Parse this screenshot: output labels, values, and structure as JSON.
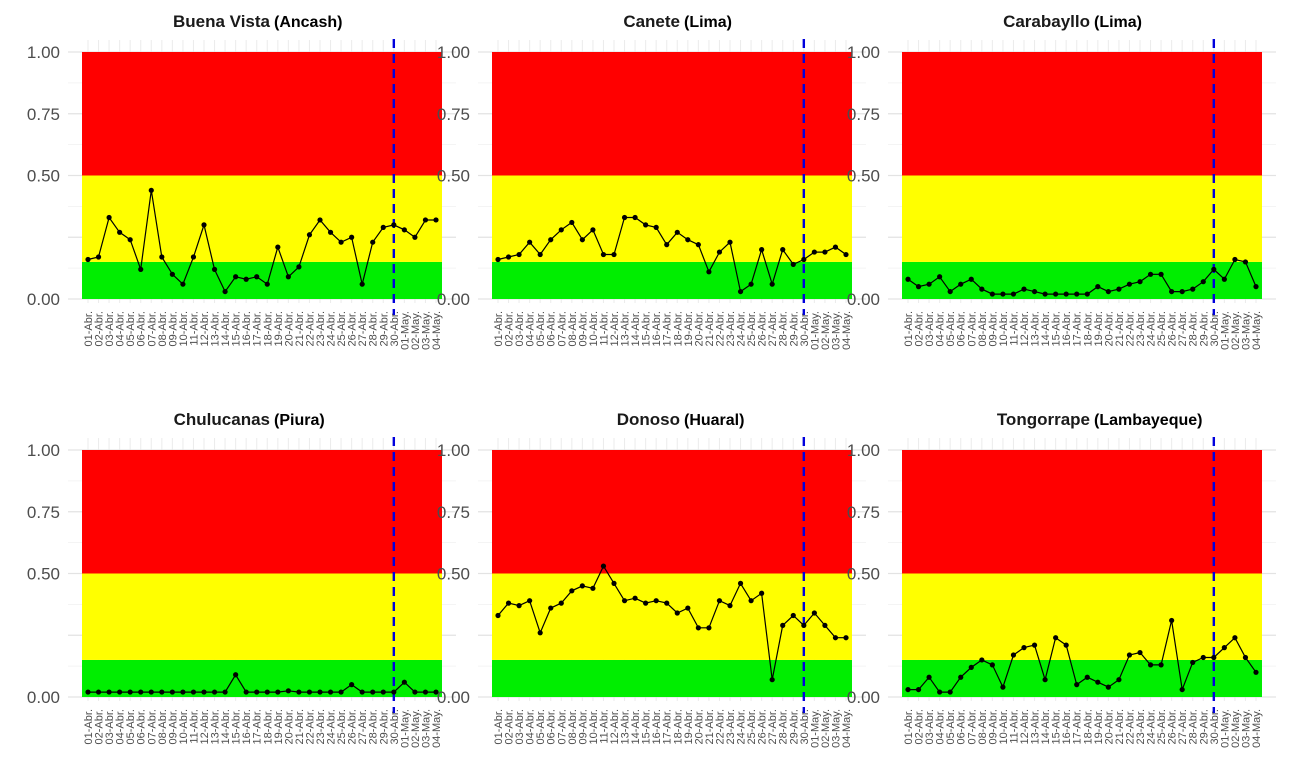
{
  "chart_data": [
    {
      "type": "line",
      "title": "Buena Vista",
      "subtitle": "(Ancash)",
      "yticks": [
        "0.00",
        "0.50",
        "0.75",
        "1.00"
      ],
      "ylim": [
        0,
        1
      ],
      "zones": [
        {
          "from": 0,
          "to": 0.15,
          "color": "#00ee00"
        },
        {
          "from": 0.15,
          "to": 0.5,
          "color": "#ffff00"
        },
        {
          "from": 0.5,
          "to": 1.0,
          "color": "#ff0000"
        }
      ],
      "vline": "30-Abr.",
      "vline_color": "#0000dd",
      "categories": [
        "01-Abr.",
        "02-Abr.",
        "03-Abr.",
        "04-Abr.",
        "05-Abr.",
        "06-Abr.",
        "07-Abr.",
        "08-Abr.",
        "09-Abr.",
        "10-Abr.",
        "11-Abr.",
        "12-Abr.",
        "13-Abr.",
        "14-Abr.",
        "15-Abr.",
        "16-Abr.",
        "17-Abr.",
        "18-Abr.",
        "19-Abr.",
        "20-Abr.",
        "21-Abr.",
        "22-Abr.",
        "23-Abr.",
        "24-Abr.",
        "25-Abr.",
        "26-Abr.",
        "27-Abr.",
        "28-Abr.",
        "29-Abr.",
        "30-Abr.",
        "01-May.",
        "02-May.",
        "03-May.",
        "04-May."
      ],
      "values": [
        0.16,
        0.17,
        0.33,
        0.27,
        0.24,
        0.12,
        0.44,
        0.17,
        0.1,
        0.06,
        0.17,
        0.3,
        0.12,
        0.03,
        0.09,
        0.08,
        0.09,
        0.06,
        0.21,
        0.09,
        0.13,
        0.26,
        0.32,
        0.27,
        0.23,
        0.25,
        0.06,
        0.23,
        0.29,
        0.3,
        0.28,
        0.25,
        0.32,
        0.32
      ]
    },
    {
      "type": "line",
      "title": "Canete",
      "subtitle": "(Lima)",
      "yticks": [
        "0.00",
        "0.50",
        "0.75",
        "1.00"
      ],
      "ylim": [
        0,
        1
      ],
      "zones": [
        {
          "from": 0,
          "to": 0.15,
          "color": "#00ee00"
        },
        {
          "from": 0.15,
          "to": 0.5,
          "color": "#ffff00"
        },
        {
          "from": 0.5,
          "to": 1.0,
          "color": "#ff0000"
        }
      ],
      "vline": "30-Abr.",
      "vline_color": "#0000dd",
      "categories": [
        "01-Abr.",
        "02-Abr.",
        "03-Abr.",
        "04-Abr.",
        "05-Abr.",
        "06-Abr.",
        "07-Abr.",
        "08-Abr.",
        "09-Abr.",
        "10-Abr.",
        "11-Abr.",
        "12-Abr.",
        "13-Abr.",
        "14-Abr.",
        "15-Abr.",
        "16-Abr.",
        "17-Abr.",
        "18-Abr.",
        "19-Abr.",
        "20-Abr.",
        "21-Abr.",
        "22-Abr.",
        "23-Abr.",
        "24-Abr.",
        "25-Abr.",
        "26-Abr.",
        "27-Abr.",
        "28-Abr.",
        "29-Abr.",
        "30-Abr.",
        "01-May.",
        "02-May.",
        "03-May.",
        "04-May."
      ],
      "values": [
        0.16,
        0.17,
        0.18,
        0.23,
        0.18,
        0.24,
        0.28,
        0.31,
        0.24,
        0.28,
        0.18,
        0.18,
        0.33,
        0.33,
        0.3,
        0.29,
        0.22,
        0.27,
        0.24,
        0.22,
        0.11,
        0.19,
        0.23,
        0.03,
        0.06,
        0.2,
        0.06,
        0.2,
        0.14,
        0.16,
        0.19,
        0.19,
        0.21,
        0.18
      ]
    },
    {
      "type": "line",
      "title": "Carabayllo",
      "subtitle": "(Lima)",
      "yticks": [
        "0.00",
        "0.50",
        "0.75",
        "1.00"
      ],
      "ylim": [
        0,
        1
      ],
      "zones": [
        {
          "from": 0,
          "to": 0.15,
          "color": "#00ee00"
        },
        {
          "from": 0.15,
          "to": 0.5,
          "color": "#ffff00"
        },
        {
          "from": 0.5,
          "to": 1.0,
          "color": "#ff0000"
        }
      ],
      "vline": "30-Abr.",
      "vline_color": "#0000dd",
      "categories": [
        "01-Abr.",
        "02-Abr.",
        "03-Abr.",
        "04-Abr.",
        "05-Abr.",
        "06-Abr.",
        "07-Abr.",
        "08-Abr.",
        "09-Abr.",
        "10-Abr.",
        "11-Abr.",
        "12-Abr.",
        "13-Abr.",
        "14-Abr.",
        "15-Abr.",
        "16-Abr.",
        "17-Abr.",
        "18-Abr.",
        "19-Abr.",
        "20-Abr.",
        "21-Abr.",
        "22-Abr.",
        "23-Abr.",
        "24-Abr.",
        "25-Abr.",
        "26-Abr.",
        "27-Abr.",
        "28-Abr.",
        "29-Abr.",
        "30-Abr.",
        "01-May.",
        "02-May.",
        "03-May.",
        "04-May."
      ],
      "values": [
        0.08,
        0.05,
        0.06,
        0.09,
        0.03,
        0.06,
        0.08,
        0.04,
        0.02,
        0.02,
        0.02,
        0.04,
        0.03,
        0.02,
        0.02,
        0.02,
        0.02,
        0.02,
        0.05,
        0.03,
        0.04,
        0.06,
        0.07,
        0.1,
        0.1,
        0.03,
        0.03,
        0.04,
        0.07,
        0.12,
        0.08,
        0.16,
        0.15,
        0.05
      ]
    },
    {
      "type": "line",
      "title": "Chulucanas",
      "subtitle": "(Piura)",
      "yticks": [
        "0.00",
        "0.50",
        "0.75",
        "1.00"
      ],
      "ylim": [
        0,
        1
      ],
      "zones": [
        {
          "from": 0,
          "to": 0.15,
          "color": "#00ee00"
        },
        {
          "from": 0.15,
          "to": 0.5,
          "color": "#ffff00"
        },
        {
          "from": 0.5,
          "to": 1.0,
          "color": "#ff0000"
        }
      ],
      "vline": "30-Abr.",
      "vline_color": "#0000dd",
      "categories": [
        "01-Abr.",
        "02-Abr.",
        "03-Abr.",
        "04-Abr.",
        "05-Abr.",
        "06-Abr.",
        "07-Abr.",
        "08-Abr.",
        "09-Abr.",
        "10-Abr.",
        "11-Abr.",
        "12-Abr.",
        "13-Abr.",
        "14-Abr.",
        "15-Abr.",
        "16-Abr.",
        "17-Abr.",
        "18-Abr.",
        "19-Abr.",
        "20-Abr.",
        "21-Abr.",
        "22-Abr.",
        "23-Abr.",
        "24-Abr.",
        "25-Abr.",
        "26-Abr.",
        "27-Abr.",
        "28-Abr.",
        "29-Abr.",
        "30-Abr.",
        "01-May.",
        "02-May.",
        "03-May.",
        "04-May."
      ],
      "values": [
        0.02,
        0.02,
        0.02,
        0.02,
        0.02,
        0.02,
        0.02,
        0.02,
        0.02,
        0.02,
        0.02,
        0.02,
        0.02,
        0.02,
        0.09,
        0.02,
        0.02,
        0.02,
        0.02,
        0.025,
        0.02,
        0.02,
        0.02,
        0.02,
        0.02,
        0.05,
        0.02,
        0.02,
        0.02,
        0.02,
        0.06,
        0.02,
        0.02,
        0.02
      ]
    },
    {
      "type": "line",
      "title": "Donoso",
      "subtitle": "(Huaral)",
      "yticks": [
        "0.00",
        "0.50",
        "0.75",
        "1.00"
      ],
      "ylim": [
        0,
        1
      ],
      "zones": [
        {
          "from": 0,
          "to": 0.15,
          "color": "#00ee00"
        },
        {
          "from": 0.15,
          "to": 0.5,
          "color": "#ffff00"
        },
        {
          "from": 0.5,
          "to": 1.0,
          "color": "#ff0000"
        }
      ],
      "vline": "30-Abr.",
      "vline_color": "#0000dd",
      "categories": [
        "01-Abr.",
        "02-Abr.",
        "03-Abr.",
        "04-Abr.",
        "05-Abr.",
        "06-Abr.",
        "07-Abr.",
        "08-Abr.",
        "09-Abr.",
        "10-Abr.",
        "11-Abr.",
        "12-Abr.",
        "13-Abr.",
        "14-Abr.",
        "15-Abr.",
        "16-Abr.",
        "17-Abr.",
        "18-Abr.",
        "19-Abr.",
        "20-Abr.",
        "21-Abr.",
        "22-Abr.",
        "23-Abr.",
        "24-Abr.",
        "25-Abr.",
        "26-Abr.",
        "27-Abr.",
        "28-Abr.",
        "29-Abr.",
        "30-Abr.",
        "01-May.",
        "02-May.",
        "03-May.",
        "04-May."
      ],
      "values": [
        0.33,
        0.38,
        0.37,
        0.39,
        0.26,
        0.36,
        0.38,
        0.43,
        0.45,
        0.44,
        0.53,
        0.46,
        0.39,
        0.4,
        0.38,
        0.39,
        0.38,
        0.34,
        0.36,
        0.28,
        0.28,
        0.39,
        0.37,
        0.46,
        0.39,
        0.42,
        0.07,
        0.29,
        0.33,
        0.29,
        0.34,
        0.29,
        0.24,
        0.24
      ]
    },
    {
      "type": "line",
      "title": "Tongorrape",
      "subtitle": "(Lambayeque)",
      "yticks": [
        "0.00",
        "0.50",
        "0.75",
        "1.00"
      ],
      "ylim": [
        0,
        1
      ],
      "zones": [
        {
          "from": 0,
          "to": 0.15,
          "color": "#00ee00"
        },
        {
          "from": 0.15,
          "to": 0.5,
          "color": "#ffff00"
        },
        {
          "from": 0.5,
          "to": 1.0,
          "color": "#ff0000"
        }
      ],
      "vline": "30-Abr.",
      "vline_color": "#0000dd",
      "categories": [
        "01-Abr.",
        "02-Abr.",
        "03-Abr.",
        "04-Abr.",
        "05-Abr.",
        "06-Abr.",
        "07-Abr.",
        "08-Abr.",
        "09-Abr.",
        "10-Abr.",
        "11-Abr.",
        "12-Abr.",
        "13-Abr.",
        "14-Abr.",
        "15-Abr.",
        "16-Abr.",
        "17-Abr.",
        "18-Abr.",
        "19-Abr.",
        "20-Abr.",
        "21-Abr.",
        "22-Abr.",
        "23-Abr.",
        "24-Abr.",
        "25-Abr.",
        "26-Abr.",
        "27-Abr.",
        "28-Abr.",
        "29-Abr.",
        "30-Abr.",
        "01-May.",
        "02-May.",
        "03-May.",
        "04-May."
      ],
      "values": [
        0.03,
        0.03,
        0.08,
        0.02,
        0.02,
        0.08,
        0.12,
        0.15,
        0.13,
        0.04,
        0.17,
        0.2,
        0.21,
        0.07,
        0.24,
        0.21,
        0.05,
        0.08,
        0.06,
        0.04,
        0.07,
        0.17,
        0.18,
        0.13,
        0.13,
        0.31,
        0.03,
        0.14,
        0.16,
        0.16,
        0.2,
        0.24,
        0.16,
        0.1
      ]
    }
  ]
}
